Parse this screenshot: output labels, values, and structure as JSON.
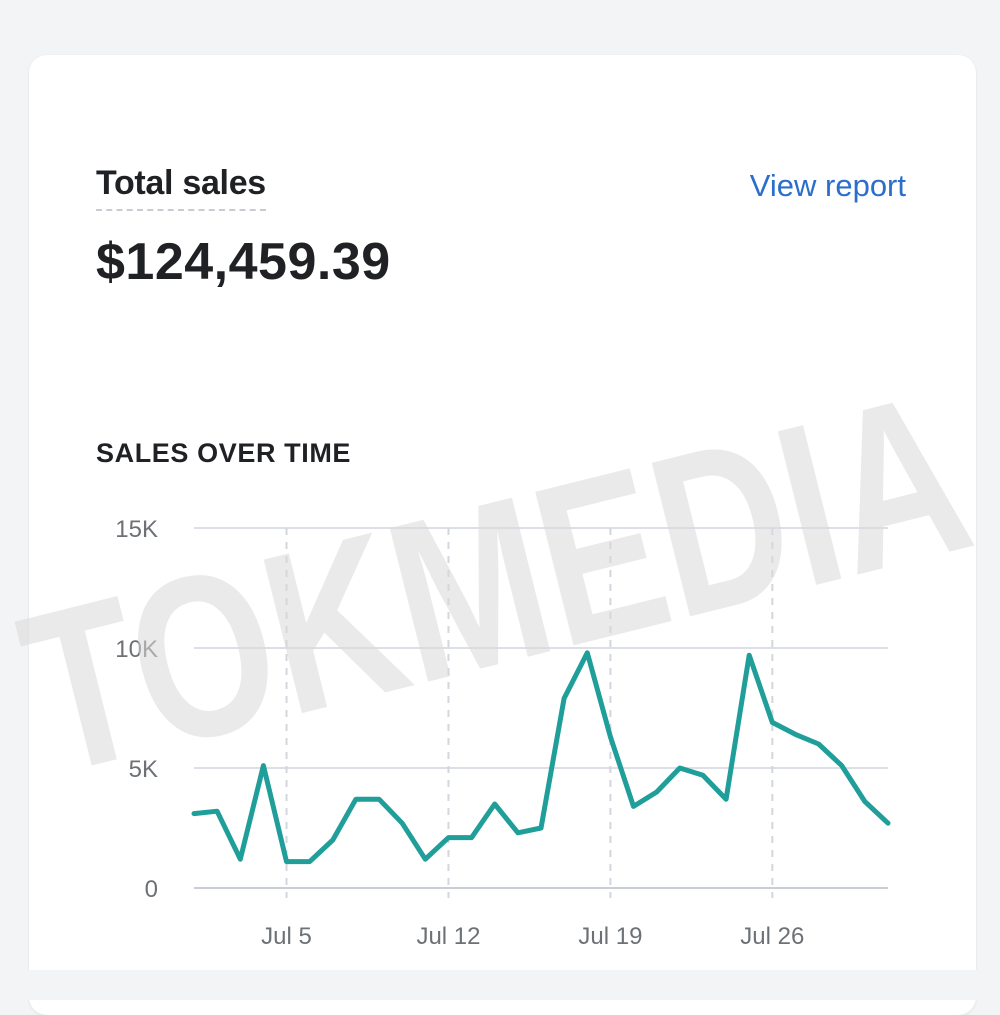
{
  "card": {
    "metric_label": "Total sales",
    "view_report_label": "View report",
    "metric_value": "$124,459.39"
  },
  "watermark": "TOKMEDIA",
  "colors": {
    "line": "#1f9e9a",
    "link": "#2c6ecb",
    "grid": "#dcdfe6"
  },
  "chart_data": {
    "type": "line",
    "title": "SALES OVER TIME",
    "ylim": [
      0,
      15000
    ],
    "yticks": [
      0,
      5000,
      10000,
      15000
    ],
    "ytick_labels": [
      "0",
      "5K",
      "10K",
      "15K"
    ],
    "xtick_labels": [
      "Jul 5",
      "Jul 12",
      "Jul 19",
      "Jul 26"
    ],
    "xtick_days": [
      5,
      12,
      19,
      26
    ],
    "x": [
      1,
      2,
      3,
      4,
      5,
      6,
      7,
      8,
      9,
      10,
      11,
      12,
      13,
      14,
      15,
      16,
      17,
      18,
      19,
      20,
      21,
      22,
      23,
      24,
      25,
      26,
      27,
      28,
      29,
      30,
      31
    ],
    "series": [
      {
        "values": [
          3100,
          3200,
          1200,
          5100,
          1100,
          1100,
          2000,
          3700,
          3700,
          2700,
          1200,
          2100,
          2100,
          3500,
          2300,
          2500,
          7900,
          9800,
          6300,
          3400,
          4000,
          5000,
          4700,
          3700,
          9700,
          6900,
          6400,
          6000,
          5100,
          3600,
          2700
        ]
      }
    ],
    "grid": true
  }
}
